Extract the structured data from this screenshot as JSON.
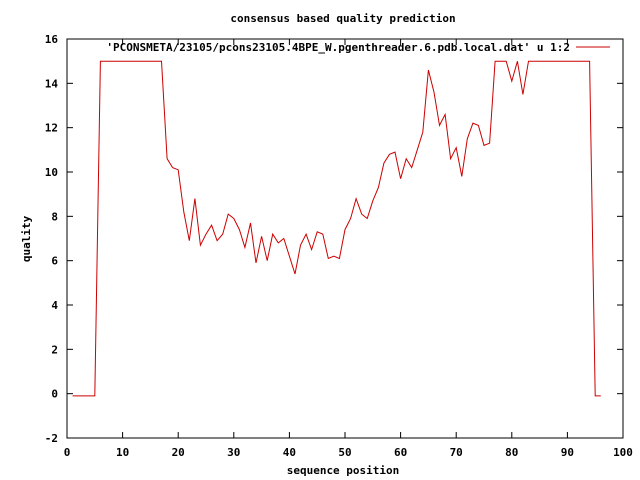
{
  "chart_data": {
    "type": "line",
    "title": "consensus based quality prediction",
    "xlabel": "sequence position",
    "ylabel": "quality",
    "xlim": [
      0,
      100
    ],
    "ylim": [
      -2,
      16
    ],
    "xticks": [
      0,
      10,
      20,
      30,
      40,
      50,
      60,
      70,
      80,
      90,
      100
    ],
    "yticks": [
      -2,
      0,
      2,
      4,
      6,
      8,
      10,
      12,
      14,
      16
    ],
    "grid": false,
    "legend_position": "top-right",
    "series": [
      {
        "name": "'PCONSMETA/23105/pcons23105.4BPE_W.pgenthreader.6.pdb.local.dat' u 1:2",
        "color": "#cc0000",
        "x": [
          1,
          2,
          3,
          4,
          5,
          6,
          7,
          8,
          9,
          10,
          11,
          12,
          13,
          14,
          15,
          16,
          17,
          18,
          19,
          20,
          21,
          22,
          23,
          24,
          25,
          26,
          27,
          28,
          29,
          30,
          31,
          32,
          33,
          34,
          35,
          36,
          37,
          38,
          39,
          40,
          41,
          42,
          43,
          44,
          45,
          46,
          47,
          48,
          49,
          50,
          51,
          52,
          53,
          54,
          55,
          56,
          57,
          58,
          59,
          60,
          61,
          62,
          63,
          64,
          65,
          66,
          67,
          68,
          69,
          70,
          71,
          72,
          73,
          74,
          75,
          76,
          77,
          78,
          79,
          80,
          81,
          82,
          83,
          84,
          85,
          86,
          87,
          88,
          89,
          90,
          91,
          92,
          93,
          94,
          95,
          96
        ],
        "y": [
          -0.1,
          -0.1,
          -0.1,
          -0.1,
          -0.1,
          15,
          15,
          15,
          15,
          15,
          15,
          15,
          15,
          15,
          15,
          15,
          15,
          10.6,
          10.2,
          10.1,
          8.2,
          6.9,
          8.8,
          6.7,
          7.2,
          7.6,
          6.9,
          7.2,
          8.1,
          7.9,
          7.4,
          6.6,
          7.7,
          5.9,
          7.1,
          6.0,
          7.2,
          6.8,
          7.0,
          6.2,
          5.4,
          6.7,
          7.2,
          6.5,
          7.3,
          7.2,
          6.1,
          6.2,
          6.1,
          7.4,
          7.9,
          8.8,
          8.1,
          7.9,
          8.7,
          9.3,
          10.4,
          10.8,
          10.9,
          9.7,
          10.6,
          10.2,
          11.0,
          11.8,
          14.6,
          13.6,
          12.1,
          12.6,
          10.6,
          11.1,
          9.8,
          11.5,
          12.2,
          12.1,
          11.2,
          11.3,
          15,
          15,
          15,
          14.1,
          15,
          13.5,
          15,
          15,
          15,
          15,
          15,
          15,
          15,
          15,
          15,
          15,
          15,
          15,
          -0.1,
          -0.1
        ]
      }
    ]
  }
}
